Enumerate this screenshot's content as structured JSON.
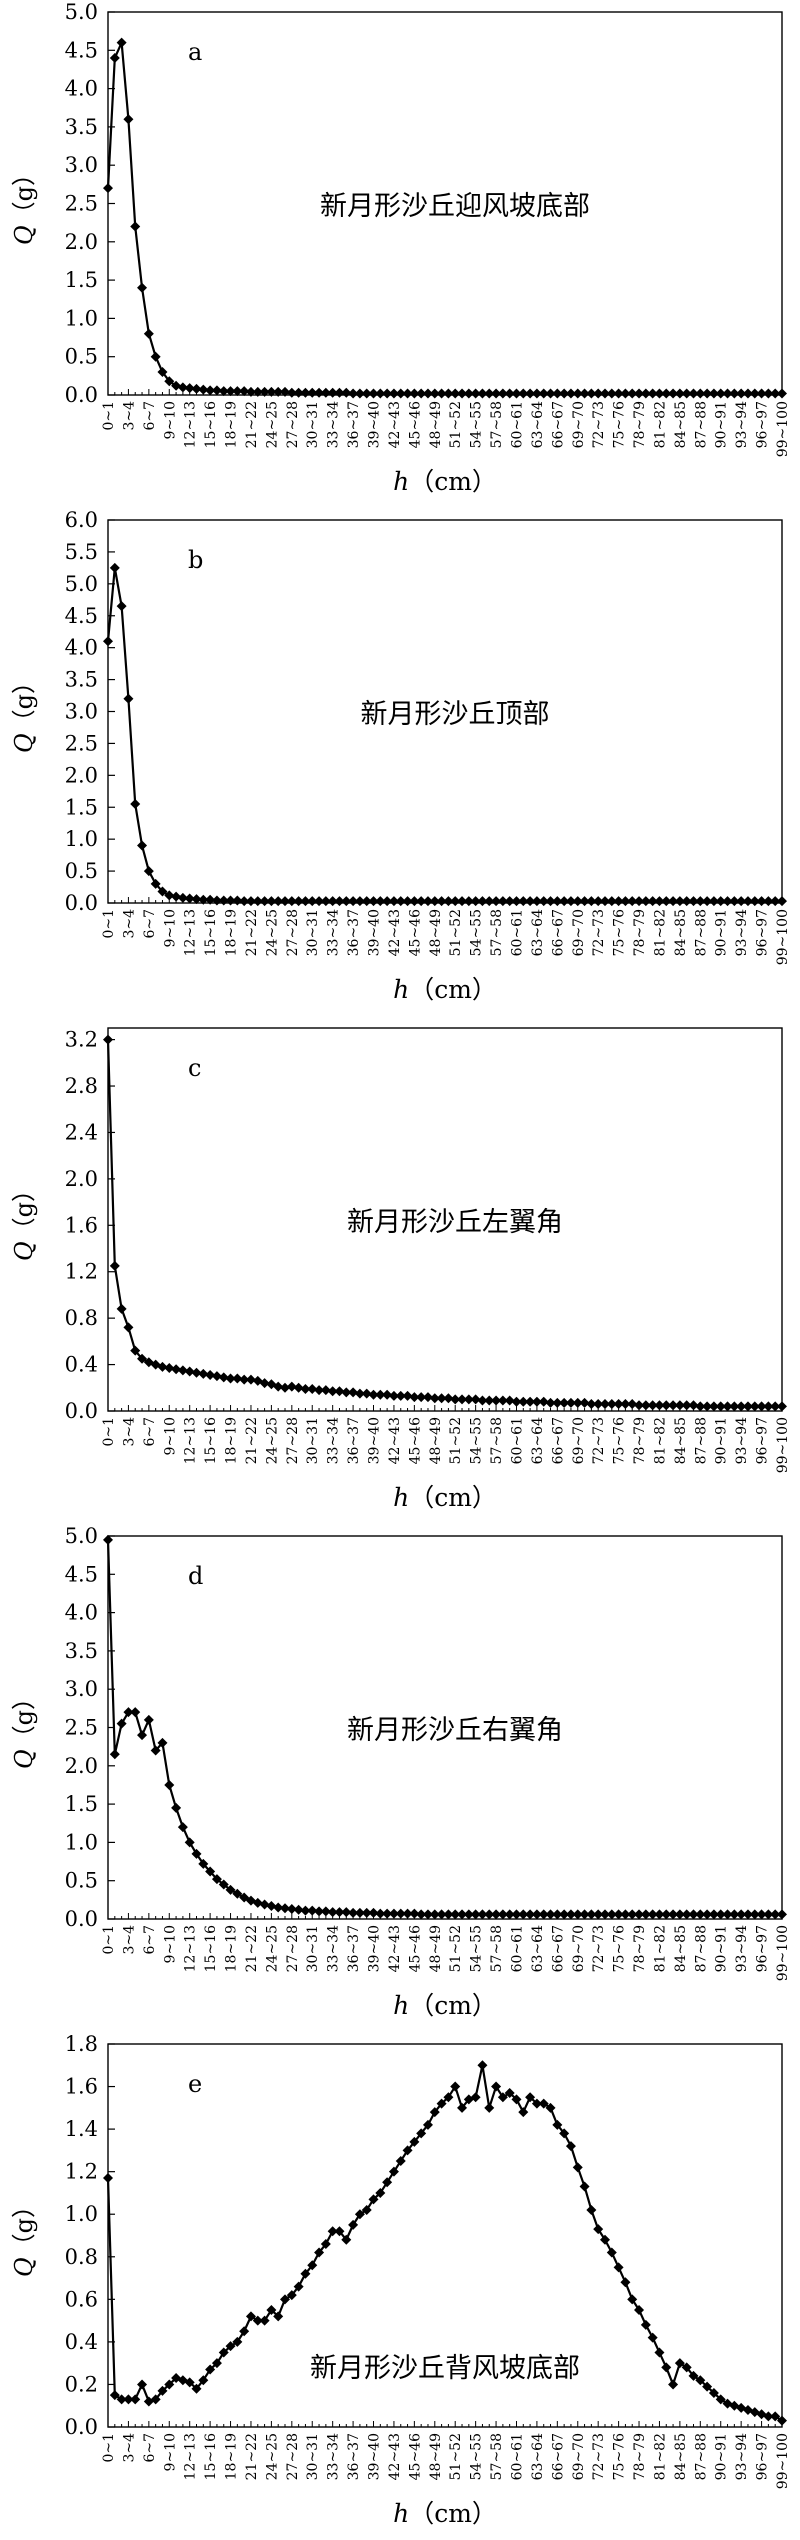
{
  "chart_data": [
    {
      "type": "line",
      "panel_letter": "a",
      "annotation": "新月形沙丘迎风坡底部",
      "ylabel_symbol": "Q",
      "ylabel_unit": "（g）",
      "xlabel_symbol": "h",
      "xlabel_unit": "（cm）",
      "ylim": [
        0,
        5.0
      ],
      "yticks": [
        "0.0",
        "0.5",
        "1.0",
        "1.5",
        "2.0",
        "2.5",
        "3.0",
        "3.5",
        "4.0",
        "4.5",
        "5.0"
      ],
      "values": [
        2.7,
        4.4,
        4.6,
        3.6,
        2.2,
        1.4,
        0.8,
        0.5,
        0.3,
        0.18,
        0.12,
        0.1,
        0.09,
        0.08,
        0.07,
        0.06,
        0.06,
        0.05,
        0.05,
        0.05,
        0.05,
        0.04,
        0.04,
        0.04,
        0.04,
        0.04,
        0.04,
        0.03,
        0.03,
        0.03,
        0.03,
        0.03,
        0.03,
        0.03,
        0.03,
        0.03,
        0.02,
        0.02,
        0.02,
        0.02,
        0.02,
        0.02,
        0.02,
        0.02,
        0.02,
        0.02,
        0.02,
        0.02,
        0.02,
        0.02,
        0.02,
        0.02,
        0.02,
        0.02,
        0.02,
        0.02,
        0.02,
        0.02,
        0.02,
        0.02,
        0.02,
        0.02,
        0.02,
        0.02,
        0.02,
        0.02,
        0.02,
        0.02,
        0.02,
        0.02,
        0.02,
        0.02,
        0.02,
        0.02,
        0.02,
        0.02,
        0.02,
        0.02,
        0.02,
        0.02,
        0.02,
        0.02,
        0.02,
        0.02,
        0.02,
        0.02,
        0.02,
        0.02,
        0.02,
        0.02,
        0.02,
        0.02,
        0.02,
        0.02,
        0.02,
        0.02,
        0.02,
        0.02,
        0.02,
        0.02
      ]
    },
    {
      "type": "line",
      "panel_letter": "b",
      "annotation": "新月形沙丘顶部",
      "ylabel_symbol": "Q",
      "ylabel_unit": "（g）",
      "xlabel_symbol": "h",
      "xlabel_unit": "（cm）",
      "ylim": [
        0,
        6.0
      ],
      "yticks": [
        "0.0",
        "0.5",
        "1.0",
        "1.5",
        "2.0",
        "2.5",
        "3.0",
        "3.5",
        "4.0",
        "4.5",
        "5.0",
        "5.5",
        "6.0"
      ],
      "values": [
        4.1,
        5.25,
        4.65,
        3.2,
        1.55,
        0.9,
        0.5,
        0.3,
        0.18,
        0.12,
        0.1,
        0.08,
        0.07,
        0.06,
        0.05,
        0.05,
        0.04,
        0.04,
        0.04,
        0.04,
        0.03,
        0.03,
        0.03,
        0.03,
        0.03,
        0.03,
        0.03,
        0.03,
        0.03,
        0.03,
        0.03,
        0.03,
        0.03,
        0.03,
        0.03,
        0.03,
        0.03,
        0.03,
        0.03,
        0.03,
        0.03,
        0.03,
        0.03,
        0.03,
        0.03,
        0.03,
        0.03,
        0.03,
        0.03,
        0.03,
        0.03,
        0.03,
        0.03,
        0.03,
        0.03,
        0.03,
        0.03,
        0.03,
        0.03,
        0.03,
        0.03,
        0.03,
        0.03,
        0.03,
        0.03,
        0.03,
        0.03,
        0.03,
        0.03,
        0.03,
        0.03,
        0.03,
        0.03,
        0.03,
        0.03,
        0.03,
        0.03,
        0.03,
        0.03,
        0.03,
        0.03,
        0.03,
        0.03,
        0.03,
        0.03,
        0.03,
        0.03,
        0.03,
        0.03,
        0.03,
        0.03,
        0.03,
        0.03,
        0.03,
        0.03,
        0.03,
        0.03,
        0.03,
        0.03,
        0.03
      ]
    },
    {
      "type": "line",
      "panel_letter": "c",
      "annotation": "新月形沙丘左翼角",
      "ylabel_symbol": "Q",
      "ylabel_unit": "（g）",
      "xlabel_symbol": "h",
      "xlabel_unit": "（cm）",
      "ylim": [
        0,
        3.3
      ],
      "yticks": [
        "0.0",
        "0.4",
        "0.8",
        "1.2",
        "1.6",
        "2.0",
        "2.4",
        "2.8",
        "3.2"
      ],
      "values": [
        3.2,
        1.25,
        0.88,
        0.72,
        0.52,
        0.45,
        0.42,
        0.4,
        0.38,
        0.37,
        0.36,
        0.35,
        0.34,
        0.33,
        0.32,
        0.31,
        0.3,
        0.29,
        0.28,
        0.28,
        0.27,
        0.27,
        0.26,
        0.24,
        0.23,
        0.21,
        0.2,
        0.21,
        0.2,
        0.19,
        0.19,
        0.18,
        0.18,
        0.17,
        0.17,
        0.16,
        0.16,
        0.15,
        0.15,
        0.14,
        0.14,
        0.14,
        0.13,
        0.13,
        0.13,
        0.12,
        0.12,
        0.12,
        0.11,
        0.11,
        0.11,
        0.1,
        0.1,
        0.1,
        0.1,
        0.09,
        0.09,
        0.09,
        0.09,
        0.09,
        0.08,
        0.08,
        0.08,
        0.08,
        0.08,
        0.07,
        0.07,
        0.07,
        0.07,
        0.07,
        0.07,
        0.06,
        0.06,
        0.06,
        0.06,
        0.06,
        0.06,
        0.06,
        0.05,
        0.05,
        0.05,
        0.05,
        0.05,
        0.05,
        0.05,
        0.05,
        0.05,
        0.04,
        0.04,
        0.04,
        0.04,
        0.04,
        0.04,
        0.04,
        0.04,
        0.04,
        0.04,
        0.04,
        0.04,
        0.04
      ]
    },
    {
      "type": "line",
      "panel_letter": "d",
      "annotation": "新月形沙丘右翼角",
      "ylabel_symbol": "Q",
      "ylabel_unit": "（g）",
      "xlabel_symbol": "h",
      "xlabel_unit": "（cm）",
      "ylim": [
        0,
        5.0
      ],
      "yticks": [
        "0.0",
        "0.5",
        "1.0",
        "1.5",
        "2.0",
        "2.5",
        "3.0",
        "3.5",
        "4.0",
        "4.5",
        "5.0"
      ],
      "values": [
        4.95,
        2.15,
        2.55,
        2.7,
        2.7,
        2.4,
        2.6,
        2.2,
        2.3,
        1.75,
        1.45,
        1.2,
        1.0,
        0.85,
        0.72,
        0.62,
        0.52,
        0.45,
        0.38,
        0.33,
        0.28,
        0.24,
        0.21,
        0.19,
        0.17,
        0.15,
        0.14,
        0.13,
        0.12,
        0.11,
        0.11,
        0.1,
        0.1,
        0.09,
        0.09,
        0.09,
        0.08,
        0.08,
        0.08,
        0.08,
        0.07,
        0.07,
        0.07,
        0.07,
        0.07,
        0.07,
        0.06,
        0.06,
        0.06,
        0.06,
        0.06,
        0.06,
        0.06,
        0.06,
        0.06,
        0.06,
        0.06,
        0.06,
        0.06,
        0.06,
        0.06,
        0.06,
        0.06,
        0.06,
        0.06,
        0.06,
        0.06,
        0.06,
        0.06,
        0.06,
        0.06,
        0.06,
        0.06,
        0.06,
        0.06,
        0.06,
        0.06,
        0.06,
        0.06,
        0.06,
        0.06,
        0.06,
        0.06,
        0.06,
        0.06,
        0.06,
        0.06,
        0.06,
        0.06,
        0.06,
        0.06,
        0.06,
        0.06,
        0.06,
        0.06,
        0.06,
        0.06,
        0.06,
        0.06,
        0.06
      ]
    },
    {
      "type": "line",
      "panel_letter": "e",
      "annotation": "新月形沙丘背风坡底部",
      "ylabel_symbol": "Q",
      "ylabel_unit": "（g）",
      "xlabel_symbol": "h",
      "xlabel_unit": "（cm）",
      "ylim": [
        0,
        1.8
      ],
      "yticks": [
        "0.0",
        "0.2",
        "0.4",
        "0.6",
        "0.8",
        "1.0",
        "1.2",
        "1.4",
        "1.6",
        "1.8"
      ],
      "values": [
        1.17,
        0.15,
        0.13,
        0.13,
        0.13,
        0.2,
        0.12,
        0.13,
        0.17,
        0.2,
        0.23,
        0.22,
        0.21,
        0.18,
        0.22,
        0.27,
        0.3,
        0.35,
        0.38,
        0.4,
        0.45,
        0.52,
        0.5,
        0.5,
        0.55,
        0.52,
        0.6,
        0.62,
        0.66,
        0.72,
        0.76,
        0.82,
        0.86,
        0.92,
        0.92,
        0.88,
        0.95,
        1.0,
        1.02,
        1.07,
        1.1,
        1.15,
        1.2,
        1.25,
        1.3,
        1.34,
        1.38,
        1.42,
        1.48,
        1.52,
        1.55,
        1.6,
        1.5,
        1.54,
        1.55,
        1.7,
        1.5,
        1.6,
        1.55,
        1.57,
        1.54,
        1.48,
        1.55,
        1.52,
        1.52,
        1.5,
        1.42,
        1.38,
        1.32,
        1.22,
        1.13,
        1.02,
        0.93,
        0.88,
        0.82,
        0.75,
        0.68,
        0.6,
        0.55,
        0.48,
        0.42,
        0.35,
        0.28,
        0.2,
        0.3,
        0.28,
        0.24,
        0.22,
        0.19,
        0.16,
        0.13,
        0.11,
        0.1,
        0.09,
        0.08,
        0.07,
        0.06,
        0.05,
        0.05,
        0.03
      ]
    }
  ],
  "x_categories": [
    "0~1",
    "1~2",
    "2~3",
    "3~4",
    "4~5",
    "5~6",
    "6~7",
    "7~8",
    "8~9",
    "9~10",
    "10~11",
    "11~12",
    "12~13",
    "13~14",
    "14~15",
    "15~16",
    "16~17",
    "17~18",
    "18~19",
    "19~20",
    "20~21",
    "21~22",
    "22~23",
    "23~24",
    "24~25",
    "25~26",
    "26~27",
    "27~28",
    "28~29",
    "29~30",
    "30~31",
    "31~32",
    "32~33",
    "33~34",
    "34~35",
    "35~36",
    "36~37",
    "37~38",
    "38~39",
    "39~40",
    "40~41",
    "41~42",
    "42~43",
    "43~44",
    "44~45",
    "45~46",
    "46~47",
    "47~48",
    "48~49",
    "49~50",
    "50~51",
    "51~52",
    "52~53",
    "53~54",
    "54~55",
    "55~56",
    "56~57",
    "57~58",
    "58~59",
    "59~60",
    "60~61",
    "61~62",
    "62~63",
    "63~64",
    "64~65",
    "65~66",
    "66~67",
    "67~68",
    "68~69",
    "69~70",
    "70~71",
    "71~72",
    "72~73",
    "73~74",
    "74~75",
    "75~76",
    "76~77",
    "77~78",
    "78~79",
    "79~80",
    "80~81",
    "81~82",
    "82~83",
    "83~84",
    "84~85",
    "85~86",
    "86~87",
    "87~88",
    "88~89",
    "89~90",
    "90~91",
    "91~92",
    "92~93",
    "93~94",
    "94~95",
    "95~96",
    "96~97",
    "97~98",
    "98~99",
    "99~100"
  ],
  "x_visible_tick_labels": [
    "0~1",
    "3~4",
    "6~7",
    "9~10",
    "12~13",
    "15~16",
    "18~19",
    "21~22",
    "24~25",
    "27~28",
    "30~31",
    "33~34",
    "36~37",
    "39~40",
    "42~43",
    "45~46",
    "48~49",
    "51~52",
    "54~55",
    "57~58",
    "60~61",
    "63~64",
    "66~67",
    "69~70",
    "72~73",
    "75~76",
    "78~79",
    "81~82",
    "84~85",
    "87~88",
    "90~91",
    "93~94",
    "96~97",
    "99~100"
  ]
}
